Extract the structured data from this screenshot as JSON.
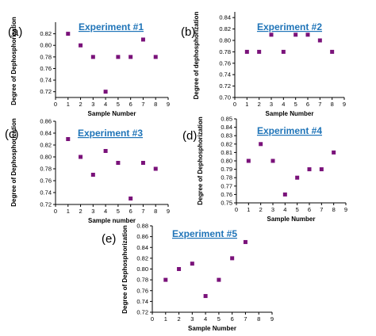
{
  "marker_color": "#7a127a",
  "title_color": "#1f74b8",
  "chart_data": [
    {
      "type": "scatter",
      "panel_label": "(a)",
      "title": "Experiment #1",
      "xlabel": "Sample Number",
      "ylabel": "Degree of Dephosphorization",
      "xlim": [
        0,
        9
      ],
      "ylim": [
        0.71,
        0.84
      ],
      "xticks": [
        0,
        1,
        2,
        3,
        4,
        5,
        6,
        7,
        8,
        9
      ],
      "yticks": [
        0.72,
        0.74,
        0.76,
        0.78,
        0.8,
        0.82
      ],
      "ytick_labels": [
        "0.72",
        "0.74",
        "0.76",
        "0.78",
        "0.80",
        "0.82"
      ],
      "x": [
        1,
        2,
        3,
        4,
        5,
        6,
        7,
        8
      ],
      "y": [
        0.82,
        0.8,
        0.78,
        0.72,
        0.78,
        0.78,
        0.81,
        0.78
      ]
    },
    {
      "type": "scatter",
      "panel_label": "(b)",
      "title": "Experiment #2",
      "xlabel": "Sample Number",
      "ylabel": "Degree of dephosphorization",
      "xlim": [
        0,
        9
      ],
      "ylim": [
        0.7,
        0.85
      ],
      "xticks": [
        0,
        1,
        2,
        3,
        4,
        5,
        6,
        7,
        8,
        9
      ],
      "yticks": [
        0.7,
        0.72,
        0.74,
        0.76,
        0.78,
        0.8,
        0.82,
        0.84
      ],
      "ytick_labels": [
        "0.70",
        "0.72",
        "0.74",
        "0.76",
        "0.78",
        "0.80",
        "0.82",
        "0.84"
      ],
      "x": [
        1,
        2,
        3,
        4,
        5,
        6,
        7,
        8
      ],
      "y": [
        0.78,
        0.78,
        0.81,
        0.78,
        0.81,
        0.81,
        0.8,
        0.78
      ]
    },
    {
      "type": "scatter",
      "panel_label": "(c)",
      "title": "Experiment #3",
      "xlabel": "Sample number",
      "ylabel": "Degree of Dephosphorization",
      "xlim": [
        0,
        9
      ],
      "ylim": [
        0.72,
        0.86
      ],
      "xticks": [
        0,
        1,
        2,
        3,
        4,
        5,
        6,
        7,
        8,
        9
      ],
      "yticks": [
        0.72,
        0.74,
        0.76,
        0.78,
        0.8,
        0.82,
        0.84,
        0.86
      ],
      "ytick_labels": [
        "0.72",
        "0.74",
        "0.76",
        "0.78",
        "0.80",
        "0.82",
        "0.84",
        "0.86"
      ],
      "x": [
        1,
        2,
        3,
        4,
        5,
        6,
        7,
        8
      ],
      "y": [
        0.83,
        0.8,
        0.77,
        0.81,
        0.79,
        0.73,
        0.79,
        0.78
      ]
    },
    {
      "type": "scatter",
      "panel_label": "(d)",
      "title": "Experiment #4",
      "xlabel": "Sample Number",
      "ylabel": "Degree of Dephosphorization",
      "xlim": [
        0,
        9
      ],
      "ylim": [
        0.75,
        0.85
      ],
      "xticks": [
        0,
        1,
        2,
        3,
        4,
        5,
        6,
        7,
        8,
        9
      ],
      "yticks": [
        0.75,
        0.76,
        0.77,
        0.78,
        0.79,
        0.8,
        0.81,
        0.82,
        0.83,
        0.84,
        0.85
      ],
      "ytick_labels": [
        "0.75",
        "0.76",
        "0.77",
        "0.78",
        "0.79",
        "0.80",
        "0.81",
        "0.82",
        "0.83",
        "0.84",
        "0.85"
      ],
      "x": [
        1,
        2,
        3,
        4,
        5,
        6,
        7,
        8
      ],
      "y": [
        0.8,
        0.82,
        0.8,
        0.76,
        0.78,
        0.79,
        0.79,
        0.81
      ]
    },
    {
      "type": "scatter",
      "panel_label": "(e)",
      "title": "Experiment #5",
      "xlabel": "Sample Number",
      "ylabel": "Degree of Dephosphorization",
      "xlim": [
        0,
        9
      ],
      "ylim": [
        0.72,
        0.88
      ],
      "xticks": [
        0,
        1,
        2,
        3,
        4,
        5,
        6,
        7,
        8,
        9
      ],
      "yticks": [
        0.72,
        0.74,
        0.76,
        0.78,
        0.8,
        0.82,
        0.84,
        0.86,
        0.88
      ],
      "ytick_labels": [
        "0.72",
        "0.74",
        "0.76",
        "0.78",
        "0.80",
        "0.82",
        "0.84",
        "0.86",
        "0.88"
      ],
      "x": [
        1,
        2,
        3,
        4,
        5,
        6,
        7
      ],
      "y": [
        0.78,
        0.8,
        0.81,
        0.75,
        0.78,
        0.82,
        0.85
      ]
    }
  ]
}
